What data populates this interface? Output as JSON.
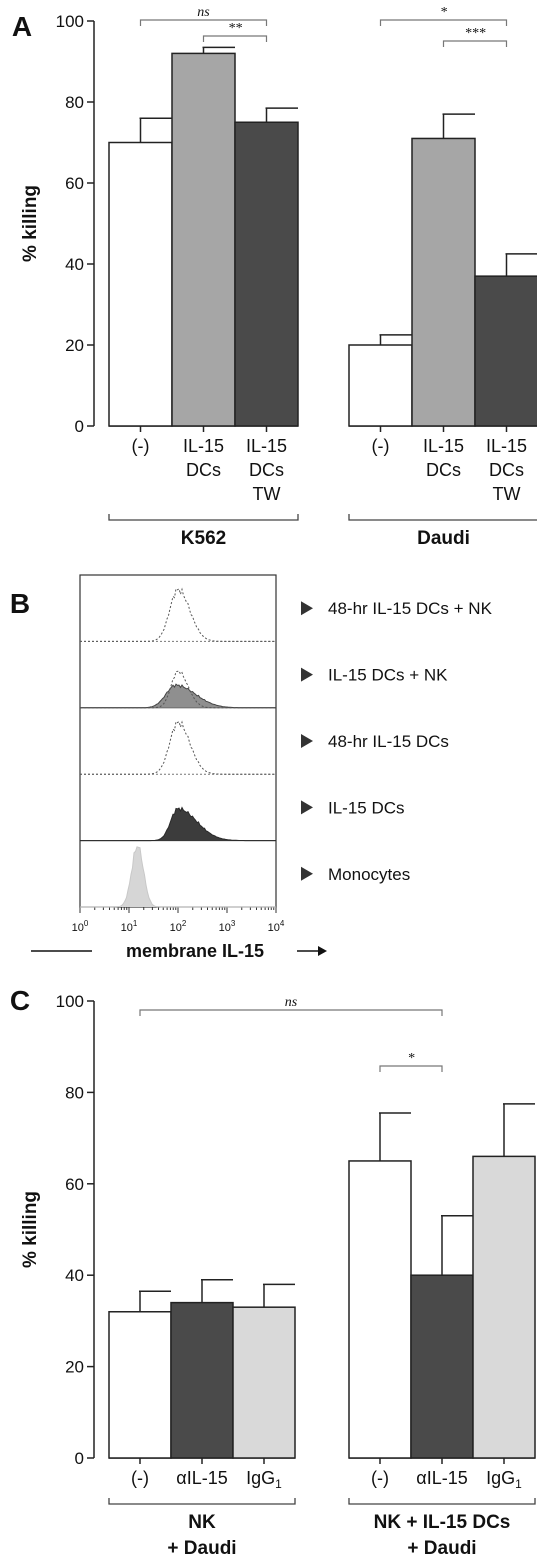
{
  "panels": {
    "A": "A",
    "B": "B",
    "C": "C"
  },
  "chart_data": [
    {
      "type": "bar",
      "panel": "A",
      "ylabel": "% killing",
      "ylim": [
        0,
        100
      ],
      "yticks": [
        0,
        20,
        40,
        60,
        80,
        100
      ],
      "groups": [
        {
          "label": "K562",
          "categories": [
            "(-)",
            "IL-15 DCs",
            "IL-15 DCs TW"
          ],
          "category_lines": [
            [
              "(-)"
            ],
            [
              "IL-15",
              "DCs"
            ],
            [
              "IL-15",
              "DCs",
              "TW"
            ]
          ],
          "values": [
            70,
            92,
            75
          ],
          "errors": [
            6,
            1.5,
            3.5
          ],
          "colors": [
            "#ffffff",
            "#a6a6a6",
            "#4a4a4a"
          ]
        },
        {
          "label": "Daudi",
          "categories": [
            "(-)",
            "IL-15 DCs",
            "IL-15 DCs TW"
          ],
          "category_lines": [
            [
              "(-)"
            ],
            [
              "IL-15",
              "DCs"
            ],
            [
              "IL-15",
              "DCs",
              "TW"
            ]
          ],
          "values": [
            20,
            71,
            37
          ],
          "errors": [
            2.5,
            6,
            5.5
          ],
          "colors": [
            "#ffffff",
            "#a6a6a6",
            "#4a4a4a"
          ]
        }
      ],
      "annotations": [
        {
          "group": 0,
          "from": 0,
          "to": 2,
          "text": "ns"
        },
        {
          "group": 0,
          "from": 1,
          "to": 2,
          "text": "**"
        },
        {
          "group": 1,
          "from": 0,
          "to": 2,
          "text": "*"
        },
        {
          "group": 1,
          "from": 1,
          "to": 2,
          "text": "***"
        }
      ]
    },
    {
      "type": "histogram",
      "panel": "B",
      "xlabel": "membrane IL-15",
      "x_scale": "log",
      "xlim": [
        1,
        10000
      ],
      "x_ticks": [
        {
          "base": "10",
          "exp": "0"
        },
        {
          "base": "10",
          "exp": "1"
        },
        {
          "base": "10",
          "exp": "2"
        },
        {
          "base": "10",
          "exp": "3"
        },
        {
          "base": "10",
          "exp": "4"
        }
      ],
      "tracks": [
        {
          "label": "48-hr IL-15 DCs + NK",
          "peak": 100,
          "style": "dotted"
        },
        {
          "label": "IL-15 DCs + NK",
          "peak": 90,
          "style": "filled-mid"
        },
        {
          "label": "48-hr IL-15 DCs",
          "peak": 100,
          "style": "dotted"
        },
        {
          "label": "IL-15 DCs",
          "peak": 100,
          "style": "filled-dark"
        },
        {
          "label": "Monocytes",
          "peak": 15,
          "style": "filled-light"
        }
      ],
      "legend_marker": "▶"
    },
    {
      "type": "bar",
      "panel": "C",
      "ylabel": "% killing",
      "ylim": [
        0,
        100
      ],
      "yticks": [
        0,
        20,
        40,
        60,
        80,
        100
      ],
      "groups": [
        {
          "label": "NK + Daudi",
          "label_lines": [
            "NK",
            "+ Daudi"
          ],
          "categories": [
            "(-)",
            "αIL-15",
            "IgG1"
          ],
          "values": [
            32,
            34,
            33
          ],
          "errors": [
            4.5,
            5,
            5
          ],
          "colors": [
            "#ffffff",
            "#4a4a4a",
            "#d9d9d9"
          ]
        },
        {
          "label": "NK + IL-15 DCs + Daudi",
          "label_lines": [
            "NK + IL-15 DCs",
            "+ Daudi"
          ],
          "categories": [
            "(-)",
            "αIL-15",
            "IgG1"
          ],
          "values": [
            65,
            40,
            66
          ],
          "errors": [
            10.5,
            13,
            11.5
          ],
          "colors": [
            "#ffffff",
            "#4a4a4a",
            "#d9d9d9"
          ]
        }
      ],
      "annotations": [
        {
          "from_group": 0,
          "from": 0,
          "to_group": 1,
          "to": 1,
          "text": "ns"
        },
        {
          "from_group": 1,
          "from": 0,
          "to_group": 1,
          "to": 1,
          "text": "*"
        }
      ]
    }
  ]
}
